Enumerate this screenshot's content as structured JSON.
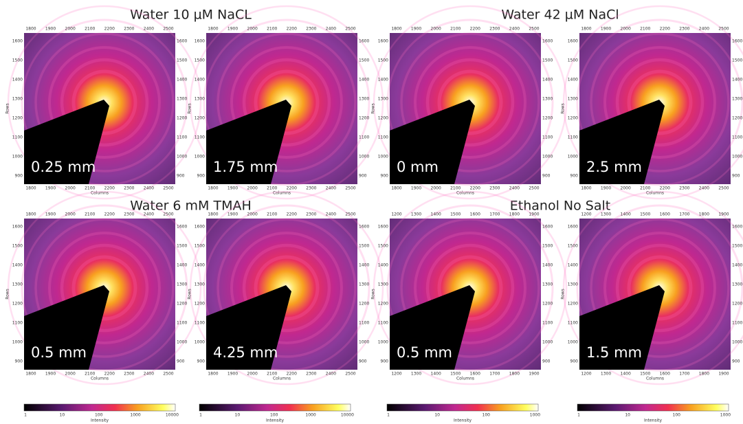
{
  "groups": [
    {
      "title": "Water 10 µM NaCL",
      "x_axis_label": "Columns",
      "y_axis_label": "Rows",
      "column_ticks": [
        1800,
        1900,
        2000,
        2100,
        2200,
        2300,
        2400,
        2500
      ],
      "row_ticks": [
        1600,
        1500,
        1400,
        1300,
        1200,
        1100,
        1000,
        900
      ],
      "panels": [
        {
          "label": "0.25 mm"
        },
        {
          "label": "1.75 mm"
        }
      ]
    },
    {
      "title": "Water 42 µM NaCl",
      "x_axis_label": "Columns",
      "y_axis_label": "Rows",
      "column_ticks": [
        1800,
        1900,
        2000,
        2100,
        2200,
        2300,
        2400,
        2500
      ],
      "row_ticks": [
        1600,
        1500,
        1400,
        1300,
        1200,
        1100,
        1000,
        900
      ],
      "panels": [
        {
          "label": "0 mm"
        },
        {
          "label": "2.5 mm"
        }
      ]
    },
    {
      "title": "Water 6 mM TMAH",
      "x_axis_label": "Columns",
      "y_axis_label": "Rows",
      "column_ticks": [
        1800,
        1900,
        2000,
        2100,
        2200,
        2300,
        2400,
        2500
      ],
      "row_ticks": [
        1600,
        1500,
        1400,
        1300,
        1200,
        1100,
        1000,
        900
      ],
      "panels": [
        {
          "label": "0.5 mm"
        },
        {
          "label": "4.25 mm"
        }
      ]
    },
    {
      "title": "Ethanol No Salt",
      "x_axis_label": "Columns",
      "y_axis_label": "Rows",
      "column_ticks": [
        1200,
        1300,
        1400,
        1500,
        1600,
        1700,
        1800,
        1900
      ],
      "row_ticks": [
        1600,
        1500,
        1400,
        1300,
        1200,
        1100,
        1000,
        900
      ],
      "panels": [
        {
          "label": "0.5 mm"
        },
        {
          "label": "1.5 mm"
        }
      ]
    }
  ],
  "colorbars": [
    {
      "ticks": [
        1,
        10,
        100,
        1000,
        10000
      ],
      "label": "Intensity"
    },
    {
      "ticks": [
        1,
        10,
        100,
        1000,
        10000
      ],
      "label": "Intensity"
    },
    {
      "ticks": [
        1,
        10,
        100,
        1000
      ],
      "label": "Intensity"
    },
    {
      "ticks": [
        1,
        10,
        100,
        1000
      ],
      "label": "Intensity"
    }
  ]
}
